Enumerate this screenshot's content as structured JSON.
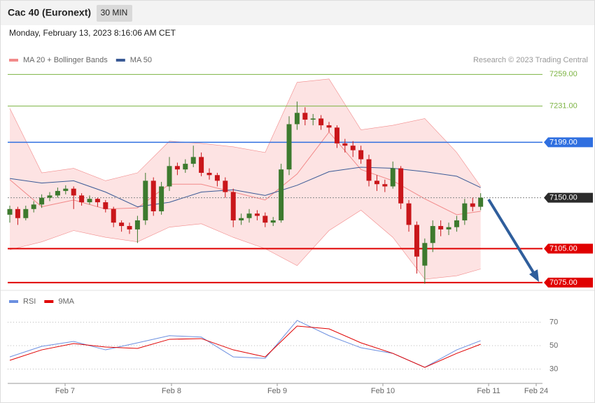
{
  "header": {
    "title": "Cac 40 (Euronext)",
    "interval": "30 MIN",
    "timestamp": "Monday, February 13, 2023 8:16:06 AM CET",
    "credit": "Research © 2023 Trading Central"
  },
  "chart_data": [
    {
      "type": "candlestick",
      "x": [
        0,
        1,
        2,
        3,
        4,
        5,
        6,
        7,
        8,
        9,
        10,
        11,
        12,
        13,
        14,
        15,
        16,
        17,
        18,
        19,
        20,
        21,
        22,
        23,
        24,
        25,
        26,
        27,
        28,
        29,
        30,
        31,
        32,
        33,
        34,
        35,
        36,
        37,
        38,
        39,
        40,
        41,
        42,
        43,
        44,
        45,
        46,
        47,
        48,
        49,
        50,
        51,
        52,
        53,
        54,
        55,
        56,
        57,
        58,
        59
      ],
      "open": [
        7135,
        7140,
        7132,
        7140,
        7144,
        7150,
        7152,
        7156,
        7158,
        7152,
        7146,
        7149,
        7146,
        7140,
        7128,
        7125,
        7122,
        7130,
        7165,
        7138,
        7160,
        7178,
        7175,
        7180,
        7186,
        7172,
        7170,
        7165,
        7155,
        7130,
        7132,
        7136,
        7134,
        7128,
        7130,
        7175,
        7215,
        7225,
        7219,
        7220,
        7214,
        7212,
        7198,
        7196,
        7192,
        7184,
        7165,
        7162,
        7160,
        7176,
        7145,
        7126,
        7090,
        7110,
        7125,
        7122,
        7124,
        7130,
        7145,
        7142
      ],
      "high": [
        7143,
        7142,
        7143,
        7147,
        7153,
        7155,
        7159,
        7161,
        7160,
        7154,
        7152,
        7150,
        7148,
        7142,
        7130,
        7128,
        7134,
        7172,
        7168,
        7164,
        7186,
        7181,
        7184,
        7196,
        7190,
        7176,
        7172,
        7168,
        7158,
        7136,
        7140,
        7139,
        7137,
        7133,
        7180,
        7222,
        7235,
        7230,
        7224,
        7223,
        7217,
        7214,
        7202,
        7200,
        7196,
        7188,
        7170,
        7166,
        7182,
        7178,
        7148,
        7129,
        7114,
        7130,
        7130,
        7128,
        7134,
        7149,
        7150,
        7154
      ],
      "low": [
        7128,
        7126,
        7130,
        7137,
        7141,
        7147,
        7150,
        7153,
        7140,
        7143,
        7144,
        7142,
        7137,
        7124,
        7120,
        7118,
        7110,
        7126,
        7134,
        7135,
        7156,
        7170,
        7172,
        7177,
        7169,
        7166,
        7160,
        7150,
        7124,
        7126,
        7128,
        7130,
        7124,
        7125,
        7128,
        7170,
        7210,
        7214,
        7214,
        7210,
        7208,
        7194,
        7190,
        7186,
        7180,
        7160,
        7156,
        7155,
        7158,
        7140,
        7120,
        7083,
        7074,
        7102,
        7116,
        7117,
        7120,
        7126,
        7138,
        7139
      ],
      "close": [
        7140,
        7132,
        7140,
        7144,
        7150,
        7152,
        7156,
        7158,
        7152,
        7146,
        7149,
        7146,
        7140,
        7128,
        7125,
        7122,
        7130,
        7165,
        7138,
        7160,
        7178,
        7175,
        7180,
        7186,
        7172,
        7170,
        7165,
        7155,
        7130,
        7132,
        7136,
        7134,
        7128,
        7130,
        7175,
        7215,
        7225,
        7219,
        7220,
        7214,
        7212,
        7198,
        7196,
        7192,
        7184,
        7165,
        7162,
        7160,
        7176,
        7145,
        7126,
        7098,
        7110,
        7125,
        7122,
        7124,
        7130,
        7145,
        7142,
        7150
      ],
      "up_color": "#3d7a2e",
      "down_color": "#c9161a",
      "indicator_x": [
        0,
        4,
        8,
        12,
        16,
        20,
        24,
        28,
        32,
        36,
        40,
        44,
        48,
        52,
        56,
        59
      ],
      "bands": {
        "name": "MA 20 + Bollinger Bands",
        "color": "#f28a8a",
        "fill": "#fde3e3",
        "upper": [
          7229,
          7172,
          7176,
          7165,
          7172,
          7200,
          7198,
          7195,
          7190,
          7252,
          7255,
          7210,
          7214,
          7220,
          7190,
          7160
        ],
        "middle": [
          7166,
          7142,
          7148,
          7140,
          7141,
          7162,
          7162,
          7155,
          7148,
          7171,
          7208,
          7175,
          7165,
          7149,
          7135,
          7138
        ],
        "lower": [
          7104,
          7111,
          7121,
          7115,
          7111,
          7124,
          7127,
          7115,
          7105,
          7090,
          7121,
          7139,
          7115,
          7078,
          7081,
          7087
        ]
      },
      "ma": {
        "name": "MA 50",
        "color": "#3a5a96",
        "values": [
          7167,
          7163,
          7165,
          7155,
          7142,
          7146,
          7155,
          7157,
          7152,
          7161,
          7173,
          7177,
          7176,
          7173,
          7169,
          7159
        ]
      },
      "levels": [
        {
          "value": 7259,
          "label": "7259.00",
          "color": "#7cb342",
          "style": "thin",
          "boxed": false
        },
        {
          "value": 7231,
          "label": "7231.00",
          "color": "#7cb342",
          "style": "thin",
          "boxed": false
        },
        {
          "value": 7199,
          "label": "7199.00",
          "color": "#2f6fe0",
          "style": "medium",
          "boxed": true
        },
        {
          "value": 7150,
          "label": "7150.00",
          "color": "#2b2b2b",
          "style": "dotted",
          "boxed": true
        },
        {
          "value": 7105,
          "label": "7105.00",
          "color": "#e00000",
          "style": "thick",
          "boxed": true
        },
        {
          "value": 7075,
          "label": "7075.00",
          "color": "#e00000",
          "style": "thick",
          "boxed": true
        }
      ],
      "xlim": [
        -0.263,
        66.75
      ],
      "ylim": [
        7070,
        7266
      ]
    },
    {
      "type": "line",
      "x": [
        0,
        4,
        8,
        12,
        16,
        20,
        24,
        28,
        32,
        36,
        40,
        44,
        48,
        52,
        56,
        59
      ],
      "series": [
        {
          "name": "RSI",
          "color": "#6b8fe0",
          "values": [
            40.4,
            49.4,
            53.6,
            46.4,
            52.4,
            58.5,
            57.3,
            40.4,
            39.2,
            71.5,
            58.5,
            48.2,
            43.4,
            31.5,
            46.4,
            54.2
          ]
        },
        {
          "name": "9MA",
          "color": "#e00000",
          "values": [
            37.5,
            46.4,
            51.8,
            48.8,
            47.6,
            55.4,
            56,
            46.4,
            40.4,
            66.7,
            64.3,
            52.4,
            43.4,
            31.5,
            43.4,
            51.2
          ]
        }
      ],
      "ylim": [
        19.6,
        82.2
      ],
      "yticks": [
        30,
        50,
        70
      ],
      "grid": true,
      "xlim": [
        -0.263,
        66.75
      ],
      "xticks": [
        {
          "value": 6.93,
          "label": "Feb 7"
        },
        {
          "value": 20.26,
          "label": "Feb 8"
        },
        {
          "value": 33.51,
          "label": "Feb 9"
        },
        {
          "value": 46.75,
          "label": "Feb 10"
        },
        {
          "value": 60,
          "label": "Feb 11"
        },
        {
          "value": 65.96,
          "label": "Feb 24"
        }
      ]
    }
  ]
}
